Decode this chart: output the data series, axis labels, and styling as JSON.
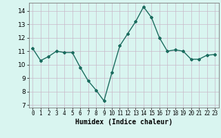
{
  "x": [
    0,
    1,
    2,
    3,
    4,
    5,
    6,
    7,
    8,
    9,
    10,
    11,
    12,
    13,
    14,
    15,
    16,
    17,
    18,
    19,
    20,
    21,
    22,
    23
  ],
  "y": [
    11.2,
    10.3,
    10.6,
    11.0,
    10.9,
    10.9,
    9.8,
    8.8,
    8.1,
    7.3,
    9.4,
    11.4,
    12.3,
    13.2,
    14.3,
    13.5,
    12.0,
    11.0,
    11.1,
    11.0,
    10.4,
    10.4,
    10.7,
    10.75
  ],
  "line_color": "#1a6b5e",
  "marker": "D",
  "marker_size": 2,
  "bg_color": "#d9f5f0",
  "grid_color": "#c8b8c8",
  "xlabel": "Humidex (Indice chaleur)",
  "xlim": [
    -0.5,
    23.5
  ],
  "ylim": [
    6.8,
    14.6
  ],
  "yticks": [
    7,
    8,
    9,
    10,
    11,
    12,
    13,
    14
  ],
  "xticks": [
    0,
    1,
    2,
    3,
    4,
    5,
    6,
    7,
    8,
    9,
    10,
    11,
    12,
    13,
    14,
    15,
    16,
    17,
    18,
    19,
    20,
    21,
    22,
    23
  ],
  "xtick_labels": [
    "0",
    "1",
    "2",
    "3",
    "4",
    "5",
    "6",
    "7",
    "8",
    "9",
    "10",
    "11",
    "12",
    "13",
    "14",
    "15",
    "16",
    "17",
    "18",
    "19",
    "20",
    "21",
    "22",
    "23"
  ],
  "linewidth": 1.0
}
